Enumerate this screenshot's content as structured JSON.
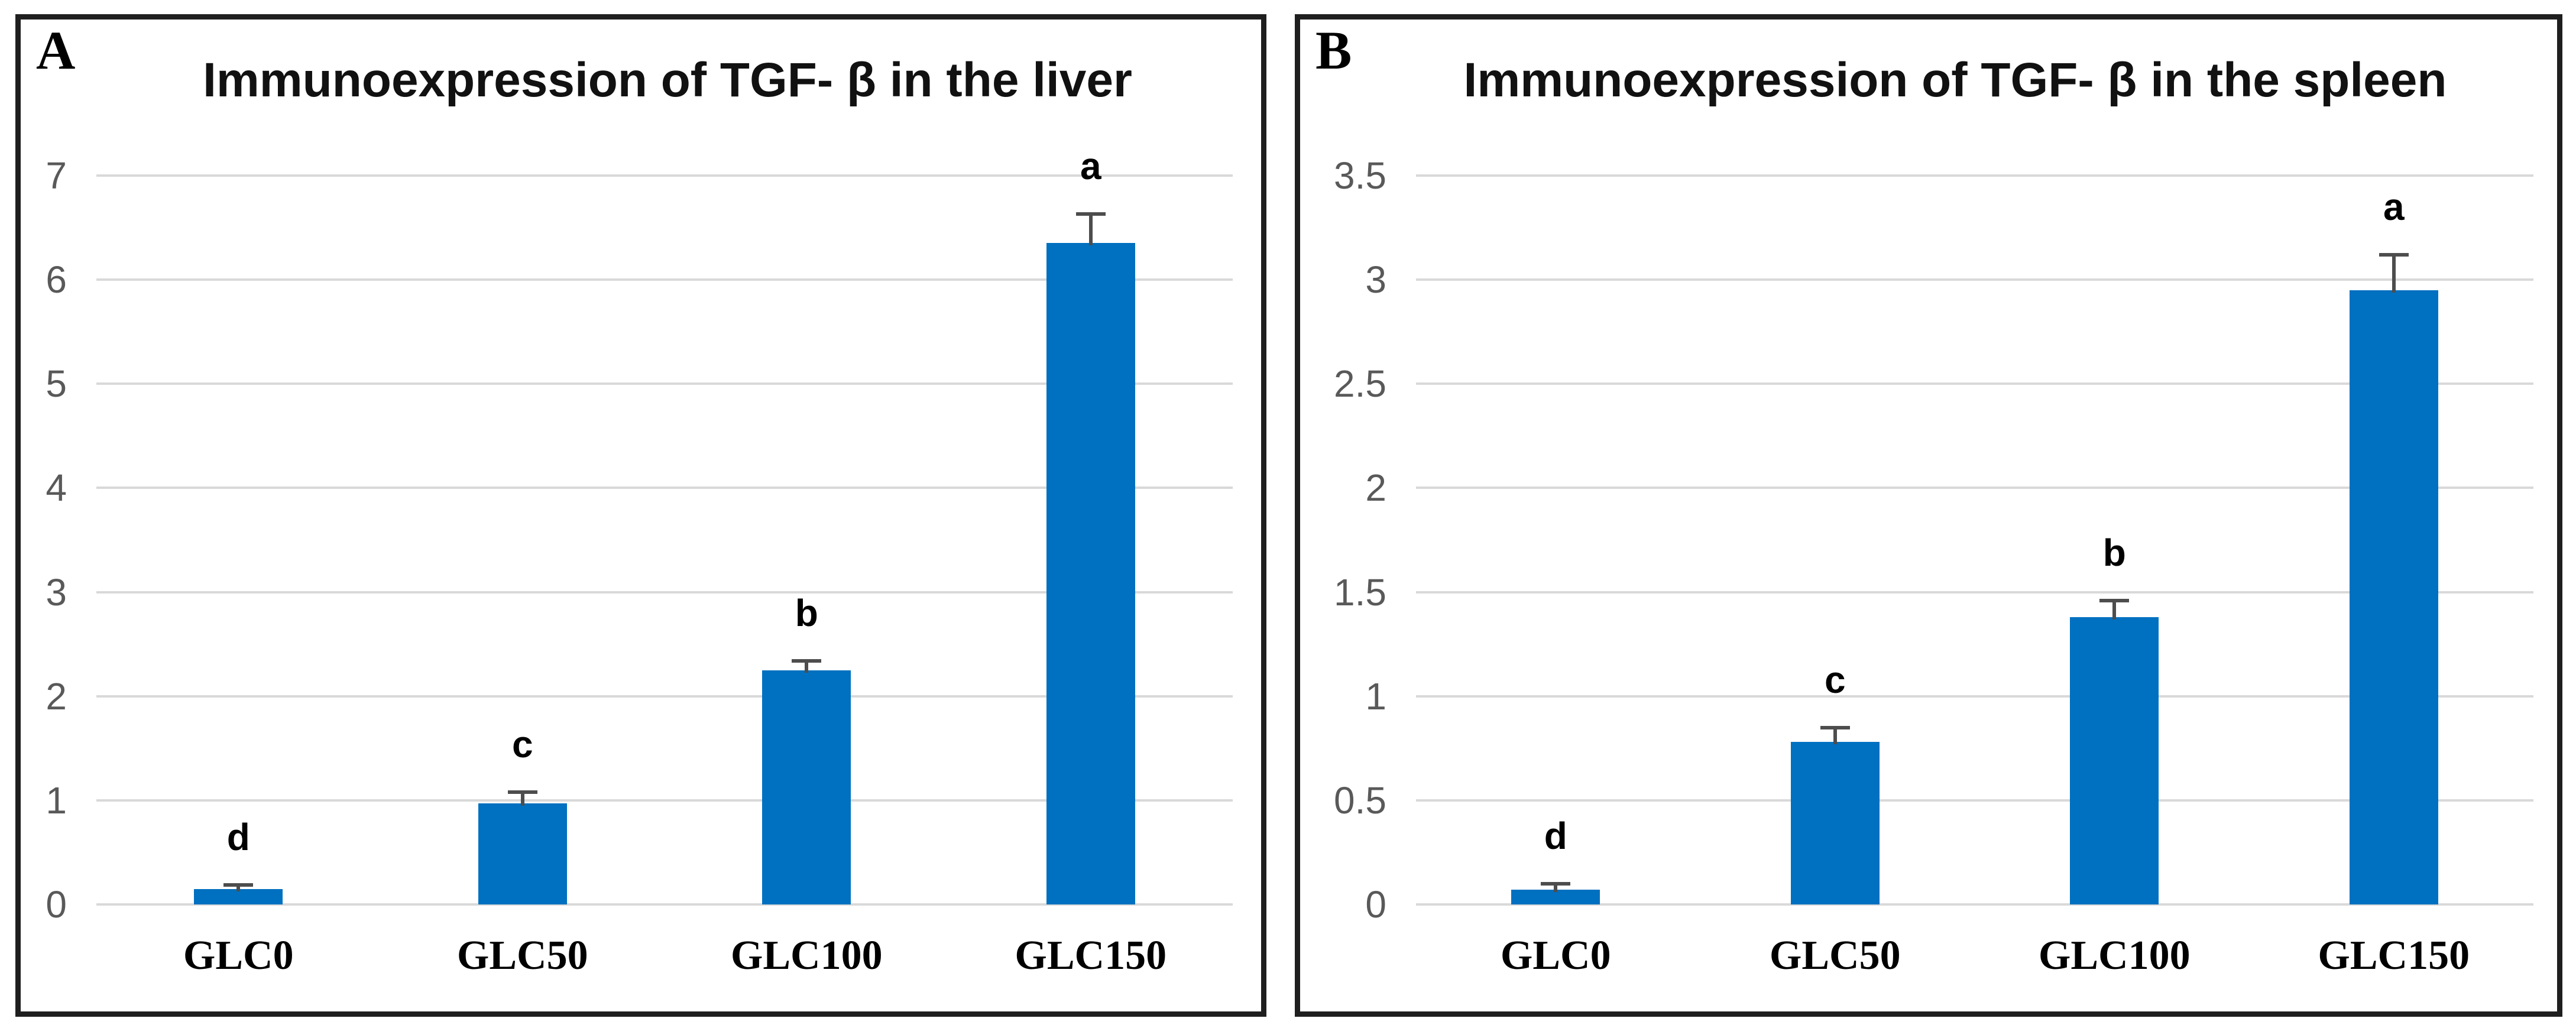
{
  "figure": {
    "panels": [
      {
        "label": "A",
        "chart_data": {
          "type": "bar",
          "title": "Immunoexpression of TGF- β in the liver",
          "categories": [
            "GLC0",
            "GLC50",
            "GLC100",
            "GLC150"
          ],
          "values": [
            0.15,
            0.97,
            2.25,
            6.35
          ],
          "error_plus": [
            0.04,
            0.11,
            0.09,
            0.28
          ],
          "sig_letters": [
            "d",
            "c",
            "b",
            "a"
          ],
          "xlabel": "",
          "ylabel": "",
          "ylim": [
            0,
            7
          ],
          "y_ticks": [
            0,
            1,
            2,
            3,
            4,
            5,
            6,
            7
          ],
          "grid": true,
          "legend": "none",
          "bar_color": "#0070C0"
        }
      },
      {
        "label": "B",
        "chart_data": {
          "type": "bar",
          "title": "Immunoexpression of TGF- β in the spleen",
          "categories": [
            "GLC0",
            "GLC50",
            "GLC100",
            "GLC150"
          ],
          "values": [
            0.07,
            0.78,
            1.38,
            2.95
          ],
          "error_plus": [
            0.03,
            0.07,
            0.08,
            0.17
          ],
          "sig_letters": [
            "d",
            "c",
            "b",
            "a"
          ],
          "xlabel": "",
          "ylabel": "",
          "ylim": [
            0,
            3.5
          ],
          "y_ticks": [
            0,
            0.5,
            1,
            1.5,
            2,
            2.5,
            3,
            3.5
          ],
          "grid": true,
          "legend": "none",
          "bar_color": "#0070C0"
        }
      }
    ]
  }
}
